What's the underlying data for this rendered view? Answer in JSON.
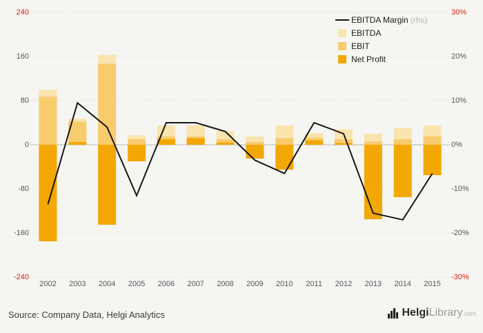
{
  "chart_data": {
    "type": "bar",
    "bar_mode": "overlap",
    "categories": [
      "2002",
      "2003",
      "2004",
      "2005",
      "2006",
      "2007",
      "2008",
      "2009",
      "2010",
      "2011",
      "2012",
      "2013",
      "2014",
      "2015"
    ],
    "series": [
      {
        "name": "EBITDA",
        "type": "bar",
        "axis": "left",
        "color": "#FAE4AE",
        "values": [
          100,
          47,
          163,
          17,
          35,
          35,
          25,
          15,
          35,
          21,
          28,
          20,
          30,
          35
        ]
      },
      {
        "name": "EBIT",
        "type": "bar",
        "axis": "left",
        "color": "#F8CB6D",
        "values": [
          87,
          42,
          147,
          10,
          15,
          15,
          10,
          5,
          12,
          13,
          10,
          6,
          10,
          15
        ]
      },
      {
        "name": "Net Profit",
        "type": "bar",
        "axis": "left",
        "color": "#F3A702",
        "values": [
          -175,
          5,
          -145,
          -30,
          10,
          12,
          4,
          -25,
          -45,
          8,
          3,
          -135,
          -95,
          -55
        ]
      },
      {
        "name": "EBITDA Margin",
        "type": "line",
        "axis": "right",
        "color": "#141414",
        "values": [
          -13.5,
          9.5,
          4,
          -11.5,
          5,
          5,
          3,
          -3.5,
          -6.5,
          5,
          2.5,
          -15.5,
          -17,
          -6.5
        ]
      }
    ],
    "left_axis": {
      "min": -240,
      "max": 240,
      "ticks": [
        "240",
        "160",
        "80",
        "0",
        "-80",
        "-160",
        "-240"
      ],
      "highlight_color": "#d7240d",
      "normal_color": "#55555a"
    },
    "right_axis": {
      "min": -30,
      "max": 30,
      "ticks": [
        "30%",
        "20%",
        "10%",
        "0%",
        "-10%",
        "-20%",
        "-30%"
      ],
      "unit": "%"
    },
    "grid": true,
    "legend_position": "top-right",
    "title": "",
    "xlabel": "",
    "ylabel": ""
  },
  "legend": {
    "items": [
      {
        "label": "EBITDA Margin",
        "suffix": "(rhs)"
      },
      {
        "label": "EBITDA"
      },
      {
        "label": "EBIT"
      },
      {
        "label": "Net Profit"
      }
    ]
  },
  "footer": {
    "source": "Source: Company Data, Helgi Analytics",
    "logo": {
      "part1": "Helgi",
      "part2": "Library",
      "part3": ".com"
    }
  }
}
